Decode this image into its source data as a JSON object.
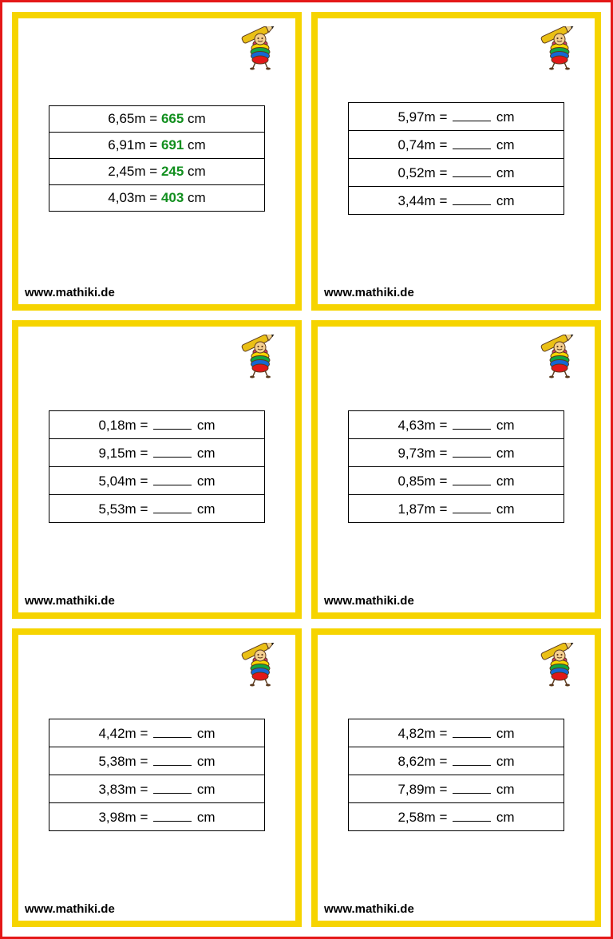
{
  "page": {
    "outer_border_color": "#e41818",
    "card_border_color": "#f6d400",
    "answer_color": "#118f1e",
    "footer": "www.mathiki.de"
  },
  "mascot": {
    "pencil_body": "#eac015",
    "pencil_tip": "#f1d38f",
    "pencil_lead": "#1a1a1a",
    "stripe_top": "#d23a6b",
    "stripe_yellow": "#f6d400",
    "stripe_green": "#10a643",
    "stripe_blue": "#1467d4",
    "stripe_red": "#e11818",
    "face": "#f4cf90",
    "outline": "#5b3a1e"
  },
  "cards": [
    {
      "rows": [
        {
          "left": "6,65m",
          "sep": "=",
          "answer": "665",
          "unit": "cm"
        },
        {
          "left": "6,91m",
          "sep": "=",
          "answer": "691",
          "unit": "cm"
        },
        {
          "left": "2,45m",
          "sep": "=",
          "answer": "245",
          "unit": "cm"
        },
        {
          "left": "4,03m",
          "sep": "=",
          "answer": "403",
          "unit": "cm"
        }
      ]
    },
    {
      "rows": [
        {
          "left": "5,97m",
          "sep": "=",
          "answer": "",
          "unit": "cm"
        },
        {
          "left": "0,74m",
          "sep": "=",
          "answer": "",
          "unit": "cm"
        },
        {
          "left": "0,52m",
          "sep": "=",
          "answer": "",
          "unit": "cm"
        },
        {
          "left": "3,44m",
          "sep": "=",
          "answer": "",
          "unit": "cm"
        }
      ]
    },
    {
      "rows": [
        {
          "left": "0,18m",
          "sep": "=",
          "answer": "",
          "unit": "cm"
        },
        {
          "left": "9,15m",
          "sep": "=",
          "answer": "",
          "unit": "cm"
        },
        {
          "left": "5,04m",
          "sep": "=",
          "answer": "",
          "unit": "cm"
        },
        {
          "left": "5,53m",
          "sep": "=",
          "answer": "",
          "unit": "cm"
        }
      ]
    },
    {
      "rows": [
        {
          "left": "4,63m",
          "sep": "=",
          "answer": "",
          "unit": "cm"
        },
        {
          "left": "9,73m",
          "sep": "=",
          "answer": "",
          "unit": "cm"
        },
        {
          "left": "0,85m",
          "sep": "=",
          "answer": "",
          "unit": "cm"
        },
        {
          "left": "1,87m",
          "sep": "=",
          "answer": "",
          "unit": "cm"
        }
      ]
    },
    {
      "rows": [
        {
          "left": "4,42m",
          "sep": "=",
          "answer": "",
          "unit": "cm"
        },
        {
          "left": "5,38m",
          "sep": "=",
          "answer": "",
          "unit": "cm"
        },
        {
          "left": "3,83m",
          "sep": "=",
          "answer": "",
          "unit": "cm"
        },
        {
          "left": "3,98m",
          "sep": "=",
          "answer": "",
          "unit": "cm"
        }
      ]
    },
    {
      "rows": [
        {
          "left": "4,82m",
          "sep": "=",
          "answer": "",
          "unit": "cm"
        },
        {
          "left": "8,62m",
          "sep": "=",
          "answer": "",
          "unit": "cm"
        },
        {
          "left": "7,89m",
          "sep": "=",
          "answer": "",
          "unit": "cm"
        },
        {
          "left": "2,58m",
          "sep": "=",
          "answer": "",
          "unit": "cm"
        }
      ]
    }
  ]
}
